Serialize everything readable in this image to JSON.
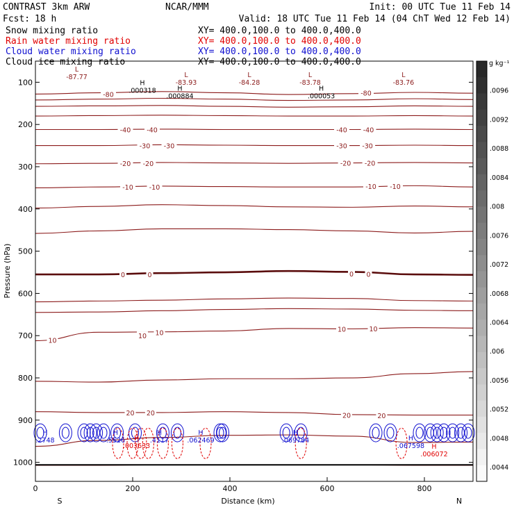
{
  "header": {
    "experiment": "CONTRAST  3km ARW",
    "producer": "NCAR/MMM",
    "init": "Init: 00 UTC Tue 11 Feb 14",
    "forecast_label": "Fcst:",
    "forecast_hours": "18 h",
    "valid": "Valid: 18 UTC Tue 11 Feb 14 (04 ChT Wed 12 Feb 14)"
  },
  "fields": [
    {
      "name": "Snow mixing ratio",
      "xy": "XY= 400.0,100.0 to 400.0,400.0",
      "color": "#000000"
    },
    {
      "name": "Rain water mixing ratio",
      "xy": "XY= 400.0,100.0 to 400.0,400.0",
      "color": "#e00000"
    },
    {
      "name": "Cloud water mixing ratio",
      "xy": "XY= 400.0,100.0 to 400.0,400.0",
      "color": "#1010d0"
    },
    {
      "name": "Cloud ice mixing ratio",
      "xy": "XY= 400.0,100.0 to 400.0,400.0",
      "color": "#000000"
    }
  ],
  "colors": {
    "temperature": "#8b1a1a",
    "rain": "#e00000",
    "cloud_water": "#1010d0",
    "snow": "#000000"
  },
  "chart_data": {
    "type": "contour",
    "xlabel": "Distance (km)",
    "ylabel": "Pressure (hPa)",
    "xlim": [
      0,
      900
    ],
    "ylim": [
      1045,
      50
    ],
    "x_ticks": [
      0,
      200,
      400,
      600,
      800
    ],
    "y_ticks": [
      100,
      200,
      300,
      400,
      500,
      600,
      700,
      800,
      900,
      1000
    ],
    "x_end_labels": {
      "left": "S",
      "right": "N"
    },
    "temperature_contours": [
      {
        "value": -80,
        "p": [
          128,
          125,
          122,
          125,
          129,
          127,
          124,
          126
        ]
      },
      {
        "value": -70,
        "p": [
          142,
          140,
          138,
          140,
          143,
          142,
          139,
          141
        ]
      },
      {
        "value": -60,
        "p": [
          157,
          156,
          155,
          157,
          159,
          158,
          156,
          157
        ]
      },
      {
        "value": -50,
        "p": [
          180,
          179,
          178,
          179,
          180,
          180,
          179,
          180
        ]
      },
      {
        "value": -40,
        "p": [
          212,
          212,
          211,
          212,
          212,
          212,
          211,
          212
        ]
      },
      {
        "value": -30,
        "p": [
          250,
          250,
          248,
          249,
          250,
          250,
          249,
          250
        ]
      },
      {
        "value": -20,
        "p": [
          293,
          292,
          290,
          291,
          292,
          291,
          290,
          291
        ]
      },
      {
        "value": -10,
        "p": [
          350,
          348,
          346,
          347,
          348,
          348,
          345,
          348
        ]
      },
      {
        "value": -5,
        "p": [
          398,
          394,
          390,
          392,
          395,
          396,
          393,
          395
        ]
      },
      {
        "value": -2,
        "p": [
          458,
          452,
          447,
          447,
          449,
          452,
          457,
          453
        ]
      },
      {
        "value": 0,
        "p": [
          555,
          555,
          552,
          550,
          547,
          549,
          555,
          556
        ]
      },
      {
        "value": 2,
        "p": [
          620,
          618,
          616,
          613,
          611,
          612,
          617,
          618
        ]
      },
      {
        "value": 5,
        "p": [
          645,
          644,
          641,
          638,
          636,
          637,
          640,
          641
        ]
      },
      {
        "value": 10,
        "p": [
          712,
          692,
          691,
          689,
          683,
          684,
          681,
          682
        ]
      },
      {
        "value": 15,
        "p": [
          808,
          810,
          805,
          802,
          802,
          800,
          790,
          785
        ]
      },
      {
        "value": 20,
        "p": [
          880,
          882,
          882,
          880,
          882,
          887,
          888,
          888
        ]
      },
      {
        "value": 25,
        "p": [
          962,
          948,
          941,
          936,
          935,
          938,
          953,
          952
        ]
      },
      {
        "value": 28,
        "p": [
          1007,
          1007,
          1006,
          1006,
          1006,
          1006,
          1007,
          1007
        ]
      }
    ],
    "contour_x": [
      0,
      130,
      260,
      390,
      520,
      650,
      780,
      900
    ],
    "contour_labels": [
      {
        "text": "-80",
        "x": 150,
        "p": 128
      },
      {
        "text": "-80",
        "x": 680,
        "p": 125
      },
      {
        "text": "-40",
        "x": 185,
        "p": 212
      },
      {
        "text": "-40",
        "x": 240,
        "p": 212
      },
      {
        "text": "-40",
        "x": 630,
        "p": 212
      },
      {
        "text": "-40",
        "x": 685,
        "p": 212
      },
      {
        "text": "-30",
        "x": 225,
        "p": 250
      },
      {
        "text": "-30",
        "x": 275,
        "p": 250
      },
      {
        "text": "-30",
        "x": 630,
        "p": 250
      },
      {
        "text": "-30",
        "x": 683,
        "p": 250
      },
      {
        "text": "-20",
        "x": 185,
        "p": 292
      },
      {
        "text": "-20",
        "x": 232,
        "p": 292
      },
      {
        "text": "-20",
        "x": 638,
        "p": 291
      },
      {
        "text": "-20",
        "x": 688,
        "p": 291
      },
      {
        "text": "-10",
        "x": 190,
        "p": 348
      },
      {
        "text": "-10",
        "x": 245,
        "p": 348
      },
      {
        "text": "-10",
        "x": 690,
        "p": 346
      },
      {
        "text": "-10",
        "x": 740,
        "p": 346
      },
      {
        "text": "0",
        "x": 180,
        "p": 555
      },
      {
        "text": "0",
        "x": 235,
        "p": 555
      },
      {
        "text": "0",
        "x": 650,
        "p": 553
      },
      {
        "text": "0",
        "x": 685,
        "p": 554
      },
      {
        "text": "10",
        "x": 35,
        "p": 710
      },
      {
        "text": "10",
        "x": 220,
        "p": 700
      },
      {
        "text": "10",
        "x": 255,
        "p": 692
      },
      {
        "text": "10",
        "x": 630,
        "p": 684
      },
      {
        "text": "10",
        "x": 695,
        "p": 683
      },
      {
        "text": "20",
        "x": 195,
        "p": 882
      },
      {
        "text": "20",
        "x": 237,
        "p": 882
      },
      {
        "text": "20",
        "x": 640,
        "p": 888
      },
      {
        "text": "20",
        "x": 712,
        "p": 889
      }
    ],
    "extrema": [
      {
        "kind": "L",
        "value": "-87.77",
        "x": 85,
        "p": 75,
        "color": "temperature"
      },
      {
        "kind": "L",
        "value": "-83.93",
        "x": 310,
        "p": 88,
        "color": "temperature"
      },
      {
        "kind": "L",
        "value": "-84.28",
        "x": 440,
        "p": 88,
        "color": "temperature"
      },
      {
        "kind": "L",
        "value": "-83.78",
        "x": 565,
        "p": 88,
        "color": "temperature"
      },
      {
        "kind": "L",
        "value": "-83.76",
        "x": 757,
        "p": 88,
        "color": "temperature"
      },
      {
        "kind": "H",
        "value": ".000318",
        "x": 220,
        "p": 107,
        "color": "snow"
      },
      {
        "kind": "H",
        "value": ".000884",
        "x": 297,
        "p": 120,
        "color": "snow"
      },
      {
        "kind": "H",
        "value": ".000053",
        "x": 588,
        "p": 120,
        "color": "snow"
      },
      {
        "kind": "H",
        "value": ".2748",
        "x": 20,
        "p": 935,
        "color": "cloud_water"
      },
      {
        "kind": "H",
        "value": ".5526",
        "x": 165,
        "p": 935,
        "color": "cloud_water"
      },
      {
        "kind": "H",
        "value": ".4117",
        "x": 255,
        "p": 935,
        "color": "cloud_water"
      },
      {
        "kind": "H",
        "value": ".062469",
        "x": 340,
        "p": 935,
        "color": "cloud_water"
      },
      {
        "kind": "H",
        "value": ".069784",
        "x": 535,
        "p": 935,
        "color": "cloud_water"
      },
      {
        "kind": "H",
        "value": ".067598",
        "x": 772,
        "p": 948,
        "color": "cloud_water"
      },
      {
        "kind": "H",
        "value": ".003633",
        "x": 208,
        "p": 948,
        "color": "rain"
      },
      {
        "kind": "H",
        "value": ".006072",
        "x": 820,
        "p": 968,
        "color": "rain"
      }
    ],
    "cloud_water_cells": [
      10,
      62,
      100,
      113,
      125,
      140,
      168,
      205,
      262,
      292,
      380,
      385,
      516,
      546,
      700,
      730,
      790,
      812,
      826,
      840,
      858,
      875,
      890
    ],
    "rain_cells": [
      170,
      200,
      217,
      232,
      262,
      292,
      350,
      546,
      753
    ],
    "colorbar": {
      "unit": "g kg⁻¹",
      "ticks": [
        ".0096",
        ".0092",
        ".0088",
        ".0084",
        ".008",
        ".0076",
        ".0072",
        ".0068",
        ".0064",
        ".006",
        ".0056",
        ".0052",
        ".0048",
        ".0044"
      ],
      "levels": 26
    }
  }
}
